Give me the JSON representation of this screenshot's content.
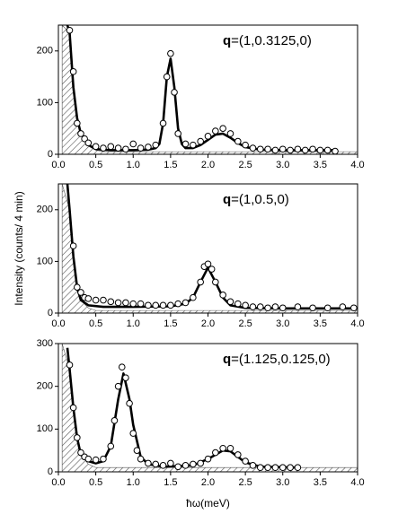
{
  "chart_data": [
    {
      "type": "scatter",
      "annotation": "q=(1,0.3125,0)",
      "xlim": [
        0,
        4
      ],
      "ylim": [
        0,
        250
      ],
      "xticks": [
        {
          "value": 0,
          "label": "0.0"
        },
        0.5,
        {
          "value": 1,
          "label": "1.0"
        },
        1.5,
        {
          "value": 2,
          "label": "2.0"
        },
        2.5,
        {
          "value": 3,
          "label": "3.0"
        },
        3.5,
        {
          "value": 4,
          "label": "4.0"
        }
      ],
      "yticks": [
        0,
        100,
        200
      ],
      "series": [
        {
          "type": "area",
          "color": "#555",
          "x": [
            0.05,
            0.15,
            0.2,
            0.25,
            0.3,
            0.4,
            0.5,
            0.6,
            4.0
          ],
          "values": [
            250,
            235,
            130,
            70,
            40,
            18,
            8,
            5,
            5
          ]
        },
        {
          "type": "line",
          "color": "#000",
          "x": [
            0.12,
            0.15,
            0.2,
            0.25,
            0.3,
            0.4,
            0.5,
            0.7,
            1.0,
            1.2,
            1.3,
            1.35,
            1.4,
            1.45,
            1.5,
            1.55,
            1.6,
            1.65,
            1.7,
            1.8,
            1.9,
            2.0,
            2.1,
            2.2,
            2.3,
            2.4,
            2.5,
            2.7,
            3.0,
            3.5,
            3.7
          ],
          "values": [
            250,
            235,
            130,
            70,
            40,
            18,
            10,
            8,
            8,
            9,
            12,
            20,
            60,
            150,
            185,
            130,
            50,
            20,
            12,
            12,
            18,
            28,
            38,
            40,
            32,
            22,
            14,
            9,
            8,
            8,
            8
          ]
        },
        {
          "type": "points",
          "color": "#fff",
          "x": [
            0.15,
            0.2,
            0.25,
            0.3,
            0.35,
            0.4,
            0.5,
            0.6,
            0.7,
            0.8,
            0.9,
            1.0,
            1.1,
            1.2,
            1.3,
            1.4,
            1.45,
            1.5,
            1.55,
            1.6,
            1.7,
            1.8,
            1.9,
            2.0,
            2.1,
            2.2,
            2.3,
            2.4,
            2.5,
            2.6,
            2.7,
            2.8,
            2.9,
            3.0,
            3.1,
            3.2,
            3.3,
            3.4,
            3.5,
            3.6,
            3.7
          ],
          "values": [
            240,
            160,
            60,
            40,
            30,
            22,
            15,
            12,
            15,
            12,
            10,
            20,
            12,
            14,
            18,
            60,
            150,
            195,
            120,
            40,
            20,
            18,
            25,
            35,
            45,
            50,
            40,
            25,
            18,
            12,
            10,
            10,
            8,
            10,
            8,
            10,
            8,
            10,
            8,
            8,
            6
          ]
        }
      ]
    },
    {
      "type": "scatter",
      "annotation": "q=(1,0.5,0)",
      "ylabel": "Intensity (counts/ 4 min)",
      "xlim": [
        0,
        4
      ],
      "ylim": [
        0,
        250
      ],
      "xticks": [
        {
          "value": 0,
          "label": "0.0"
        },
        0.5,
        {
          "value": 1,
          "label": "1.0"
        },
        1.5,
        {
          "value": 2,
          "label": "2.0"
        },
        2.5,
        {
          "value": 3,
          "label": "3.0"
        },
        3.5,
        {
          "value": 4,
          "label": "4.0"
        }
      ],
      "yticks": [
        0,
        100,
        200
      ],
      "series": [
        {
          "type": "area",
          "color": "#555",
          "x": [
            0.05,
            0.15,
            0.2,
            0.25,
            0.3,
            0.4,
            0.5,
            4.0
          ],
          "values": [
            250,
            200,
            110,
            50,
            25,
            10,
            5,
            5
          ]
        },
        {
          "type": "line",
          "color": "#000",
          "x": [
            0.12,
            0.15,
            0.2,
            0.25,
            0.3,
            0.4,
            0.6,
            1.0,
            1.5,
            1.7,
            1.8,
            1.9,
            2.0,
            2.1,
            2.2,
            2.3,
            2.5,
            3.0,
            4.0
          ],
          "values": [
            250,
            200,
            110,
            50,
            25,
            15,
            12,
            12,
            13,
            18,
            30,
            60,
            88,
            60,
            30,
            15,
            10,
            9,
            9
          ]
        },
        {
          "type": "points",
          "color": "#fff",
          "x": [
            0.2,
            0.25,
            0.3,
            0.35,
            0.4,
            0.5,
            0.6,
            0.7,
            0.8,
            0.9,
            1.0,
            1.1,
            1.2,
            1.3,
            1.4,
            1.5,
            1.6,
            1.7,
            1.8,
            1.9,
            1.95,
            2.0,
            2.05,
            2.1,
            2.2,
            2.3,
            2.4,
            2.5,
            2.6,
            2.7,
            2.8,
            2.9,
            3.0,
            3.2,
            3.4,
            3.6,
            3.8,
            3.95
          ],
          "values": [
            130,
            50,
            40,
            30,
            28,
            25,
            25,
            22,
            20,
            20,
            18,
            18,
            15,
            15,
            15,
            15,
            18,
            20,
            30,
            60,
            90,
            95,
            85,
            60,
            35,
            22,
            18,
            15,
            12,
            12,
            10,
            12,
            10,
            12,
            10,
            10,
            12,
            10
          ]
        }
      ]
    },
    {
      "type": "scatter",
      "annotation": "q=(1.125,0.125,0)",
      "xlabel": "ħω(meV)",
      "xlim": [
        0,
        4
      ],
      "ylim": [
        0,
        300
      ],
      "xticks": [
        {
          "value": 0,
          "label": "0.0"
        },
        0.5,
        {
          "value": 1,
          "label": "1.0"
        },
        1.5,
        {
          "value": 2,
          "label": "2.0"
        },
        2.5,
        {
          "value": 3,
          "label": "3.0"
        },
        3.5,
        {
          "value": 4,
          "label": "4.0"
        }
      ],
      "yticks": [
        0,
        100,
        200,
        300
      ],
      "series": [
        {
          "type": "area",
          "color": "#555",
          "x": [
            0.05,
            0.15,
            0.2,
            0.25,
            0.3,
            0.4,
            0.5,
            4.0
          ],
          "values": [
            300,
            240,
            150,
            80,
            40,
            18,
            10,
            10
          ]
        },
        {
          "type": "line",
          "color": "#000",
          "x": [
            0.12,
            0.15,
            0.2,
            0.25,
            0.3,
            0.4,
            0.5,
            0.6,
            0.7,
            0.8,
            0.87,
            0.95,
            1.0,
            1.1,
            1.2,
            1.4,
            1.8,
            2.0,
            2.2,
            2.3,
            2.5,
            2.7,
            3.2
          ],
          "values": [
            290,
            240,
            150,
            80,
            40,
            25,
            20,
            25,
            60,
            170,
            230,
            170,
            110,
            35,
            18,
            12,
            15,
            30,
            50,
            48,
            22,
            12,
            10
          ]
        },
        {
          "type": "points",
          "color": "#fff",
          "x": [
            0.15,
            0.2,
            0.25,
            0.3,
            0.35,
            0.4,
            0.5,
            0.6,
            0.7,
            0.75,
            0.8,
            0.85,
            0.9,
            0.95,
            1.0,
            1.05,
            1.1,
            1.2,
            1.3,
            1.4,
            1.5,
            1.6,
            1.7,
            1.8,
            1.9,
            2.0,
            2.1,
            2.2,
            2.3,
            2.4,
            2.5,
            2.6,
            2.7,
            2.8,
            2.9,
            3.0,
            3.1,
            3.2
          ],
          "values": [
            250,
            150,
            80,
            45,
            35,
            30,
            28,
            30,
            60,
            120,
            200,
            245,
            220,
            160,
            90,
            50,
            30,
            20,
            18,
            15,
            20,
            12,
            15,
            18,
            20,
            30,
            45,
            55,
            55,
            40,
            25,
            15,
            10,
            10,
            10,
            10,
            10,
            10
          ]
        }
      ]
    }
  ]
}
